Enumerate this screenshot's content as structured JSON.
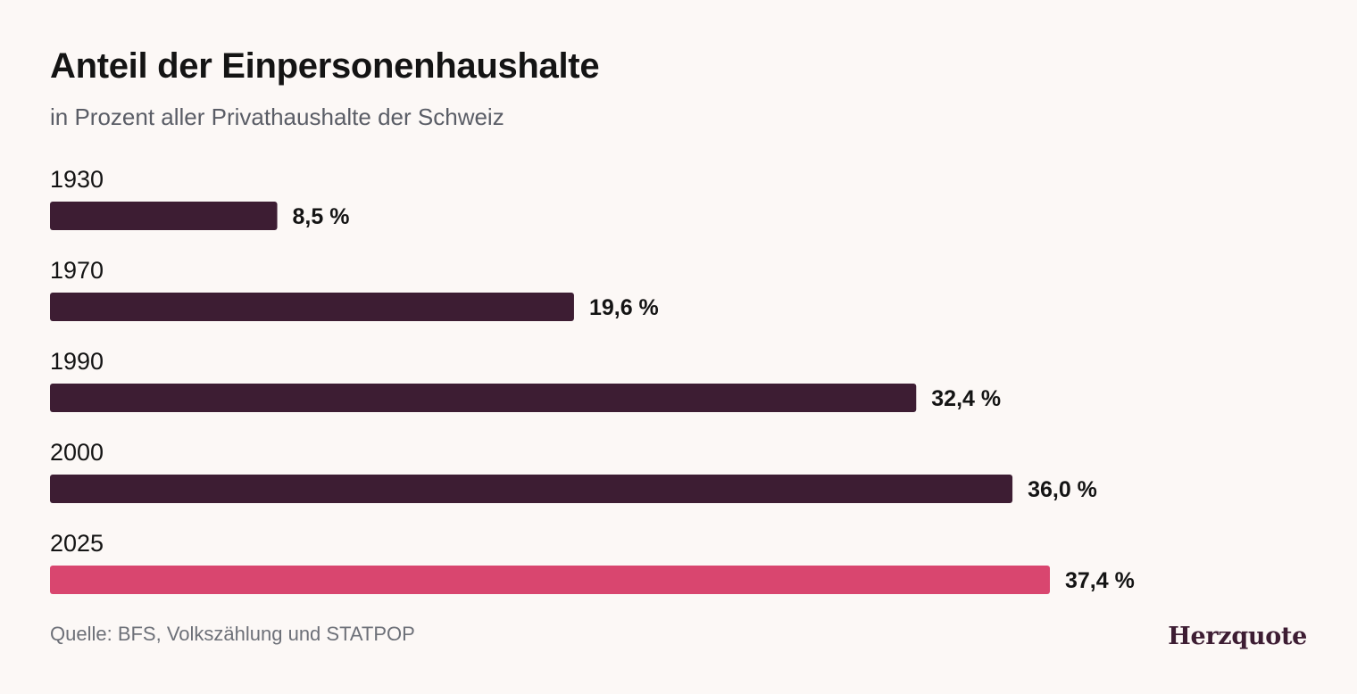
{
  "chart_data": {
    "type": "bar",
    "orientation": "horizontal",
    "title": "Anteil der Einpersonenhaushalte",
    "subtitle": "in Prozent aller Privathaushalte der Schweiz",
    "categories": [
      "1930",
      "1970",
      "1990",
      "2000",
      "2025"
    ],
    "values": [
      8.5,
      19.6,
      32.4,
      36.0,
      37.4
    ],
    "value_labels": [
      "8,5 %",
      "19,6 %",
      "32,4 %",
      "36,0 %",
      "37,4 %"
    ],
    "colors": [
      "#3d1d33",
      "#3d1d33",
      "#3d1d33",
      "#3d1d33",
      "#d9466f"
    ],
    "highlight_color": "#d9466f",
    "bar_color": "#3d1d33",
    "xlim": [
      0,
      37.4
    ],
    "grid": false,
    "legend": "none"
  },
  "footer": {
    "source": "Quelle: BFS, Volkszählung und STATPOP",
    "brand": "Herzquote"
  }
}
